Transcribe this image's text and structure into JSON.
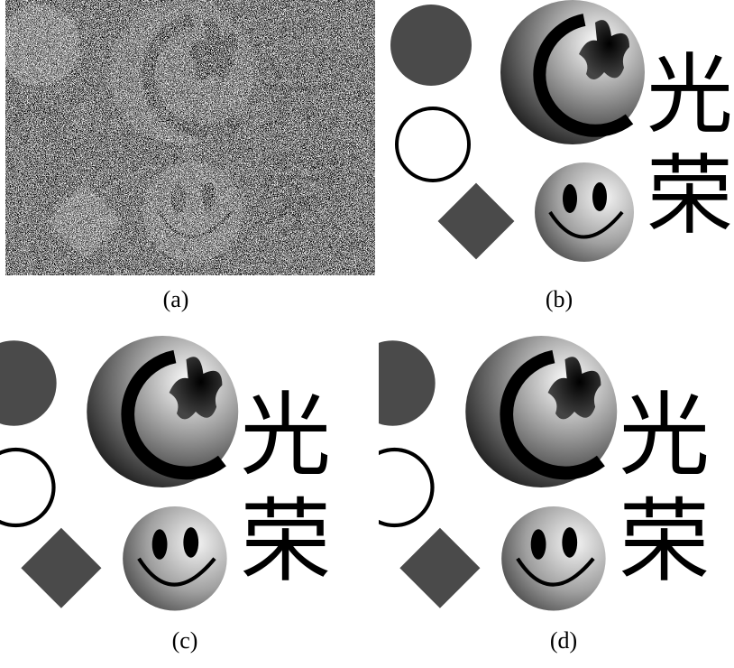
{
  "panels": [
    {
      "caption": "(a)",
      "glyphs": [
        "光",
        "荣"
      ]
    },
    {
      "caption": "(b)",
      "glyphs": [
        "光",
        "荣"
      ]
    },
    {
      "caption": "(c)",
      "glyphs": [
        "光",
        "荣"
      ]
    },
    {
      "caption": "(d)",
      "glyphs": [
        "光",
        "荣"
      ]
    }
  ]
}
